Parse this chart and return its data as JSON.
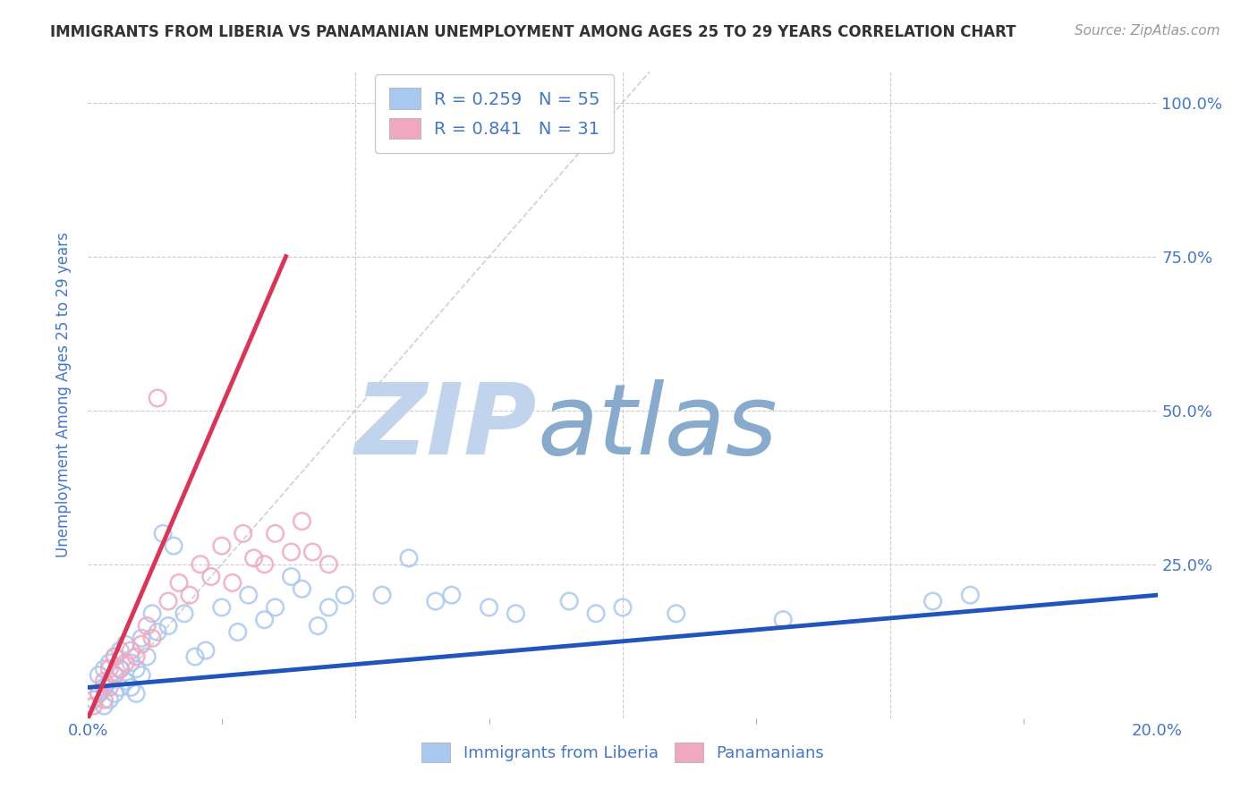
{
  "title": "IMMIGRANTS FROM LIBERIA VS PANAMANIAN UNEMPLOYMENT AMONG AGES 25 TO 29 YEARS CORRELATION CHART",
  "source_text": "Source: ZipAtlas.com",
  "ylabel": "Unemployment Among Ages 25 to 29 years",
  "xlim": [
    0.0,
    0.2
  ],
  "ylim": [
    0.0,
    1.05
  ],
  "xticks_major": [
    0.0,
    0.05,
    0.1,
    0.15,
    0.2
  ],
  "xticks_minor": [
    0.025,
    0.075,
    0.125,
    0.175
  ],
  "xticklabels": [
    "0.0%",
    "",
    "",
    "",
    "20.0%"
  ],
  "yticks": [
    0.25,
    0.5,
    0.75,
    1.0
  ],
  "yticklabels_right": [
    "25.0%",
    "50.0%",
    "75.0%",
    "100.0%"
  ],
  "legend_R1": "R = 0.259",
  "legend_N1": "N = 55",
  "legend_R2": "R = 0.841",
  "legend_N2": "N = 31",
  "series1_color": "#a8c8f0",
  "series2_color": "#f0a8c0",
  "trend1_color": "#2255bb",
  "trend2_color": "#dd3355",
  "ref_line_color": "#cccccc",
  "watermark_zip_color": "#c0d4ee",
  "watermark_atlas_color": "#88aacc",
  "background_color": "#ffffff",
  "grid_color": "#cccccc",
  "title_color": "#333333",
  "axis_label_color": "#4477cc",
  "tick_label_color": "#4477cc",
  "blue_scatter_x": [
    0.001,
    0.002,
    0.002,
    0.003,
    0.003,
    0.003,
    0.004,
    0.004,
    0.004,
    0.005,
    0.005,
    0.005,
    0.006,
    0.006,
    0.006,
    0.007,
    0.007,
    0.008,
    0.008,
    0.009,
    0.009,
    0.01,
    0.01,
    0.011,
    0.012,
    0.013,
    0.014,
    0.015,
    0.016,
    0.018,
    0.02,
    0.022,
    0.025,
    0.028,
    0.03,
    0.033,
    0.035,
    0.038,
    0.04,
    0.043,
    0.045,
    0.048,
    0.055,
    0.06,
    0.065,
    0.068,
    0.075,
    0.08,
    0.09,
    0.095,
    0.1,
    0.11,
    0.13,
    0.158,
    0.165
  ],
  "blue_scatter_y": [
    0.03,
    0.04,
    0.07,
    0.02,
    0.05,
    0.08,
    0.03,
    0.06,
    0.09,
    0.04,
    0.07,
    0.1,
    0.05,
    0.08,
    0.11,
    0.06,
    0.12,
    0.05,
    0.09,
    0.04,
    0.08,
    0.07,
    0.13,
    0.1,
    0.17,
    0.14,
    0.3,
    0.15,
    0.28,
    0.17,
    0.1,
    0.11,
    0.18,
    0.14,
    0.2,
    0.16,
    0.18,
    0.23,
    0.21,
    0.15,
    0.18,
    0.2,
    0.2,
    0.26,
    0.19,
    0.2,
    0.18,
    0.17,
    0.19,
    0.17,
    0.18,
    0.17,
    0.16,
    0.19,
    0.2
  ],
  "pink_scatter_x": [
    0.001,
    0.002,
    0.003,
    0.003,
    0.004,
    0.004,
    0.005,
    0.005,
    0.006,
    0.007,
    0.008,
    0.009,
    0.01,
    0.011,
    0.012,
    0.013,
    0.015,
    0.017,
    0.019,
    0.021,
    0.023,
    0.025,
    0.027,
    0.029,
    0.031,
    0.033,
    0.035,
    0.038,
    0.04,
    0.042,
    0.045
  ],
  "pink_scatter_y": [
    0.02,
    0.04,
    0.03,
    0.06,
    0.05,
    0.08,
    0.07,
    0.1,
    0.08,
    0.09,
    0.11,
    0.1,
    0.12,
    0.15,
    0.13,
    0.52,
    0.19,
    0.22,
    0.2,
    0.25,
    0.23,
    0.28,
    0.22,
    0.3,
    0.26,
    0.25,
    0.3,
    0.27,
    0.32,
    0.27,
    0.25
  ],
  "trend1_x": [
    0.0,
    0.2
  ],
  "trend1_y": [
    0.05,
    0.2
  ],
  "trend2_x": [
    0.0,
    0.037
  ],
  "trend2_y": [
    0.0,
    0.75
  ],
  "ref_line_x": [
    0.0,
    0.105
  ],
  "ref_line_y": [
    0.0,
    1.05
  ]
}
